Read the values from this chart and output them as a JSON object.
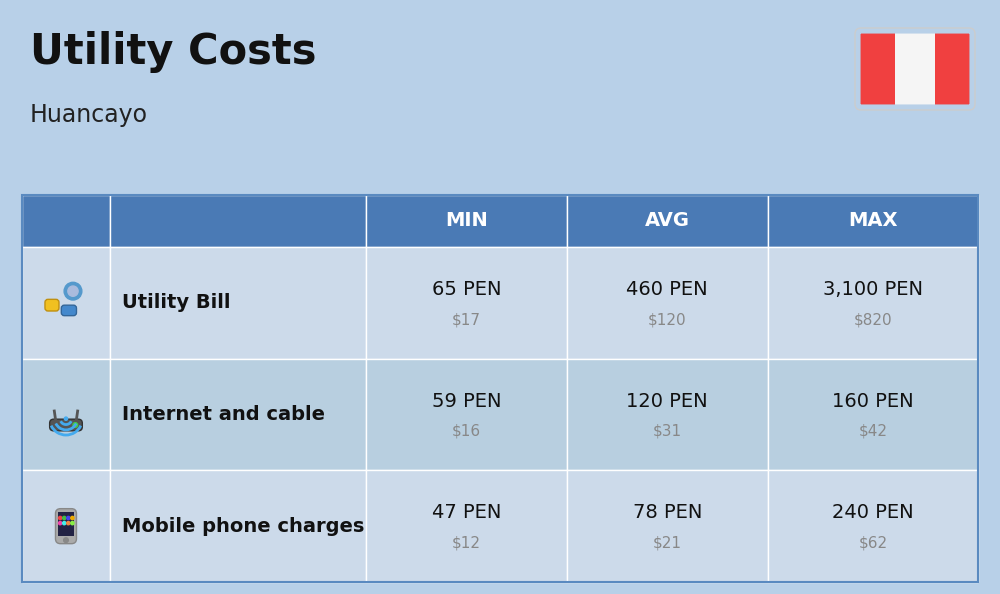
{
  "title": "Utility Costs",
  "subtitle": "Huancayo",
  "bg_color": "#b8d0e8",
  "header_color": "#4a7ab5",
  "header_text_color": "#ffffff",
  "row_color_light": "#ccdaea",
  "row_color_dark": "#b8cfe0",
  "col_headers": [
    "MIN",
    "AVG",
    "MAX"
  ],
  "rows": [
    {
      "label": "Utility Bill",
      "min_pen": "65 PEN",
      "min_usd": "$17",
      "avg_pen": "460 PEN",
      "avg_usd": "$120",
      "max_pen": "3,100 PEN",
      "max_usd": "$820"
    },
    {
      "label": "Internet and cable",
      "min_pen": "59 PEN",
      "min_usd": "$16",
      "avg_pen": "120 PEN",
      "avg_usd": "$31",
      "max_pen": "160 PEN",
      "max_usd": "$42"
    },
    {
      "label": "Mobile phone charges",
      "min_pen": "47 PEN",
      "min_usd": "$12",
      "avg_pen": "78 PEN",
      "avg_usd": "$21",
      "max_pen": "240 PEN",
      "max_usd": "$62"
    }
  ],
  "title_fontsize": 30,
  "subtitle_fontsize": 17,
  "header_fontsize": 14,
  "label_fontsize": 14,
  "value_pen_fontsize": 14,
  "value_usd_fontsize": 11,
  "flag_red": "#f04040",
  "flag_white": "#f5f5f5",
  "table_border_color": "#5a8ac0"
}
